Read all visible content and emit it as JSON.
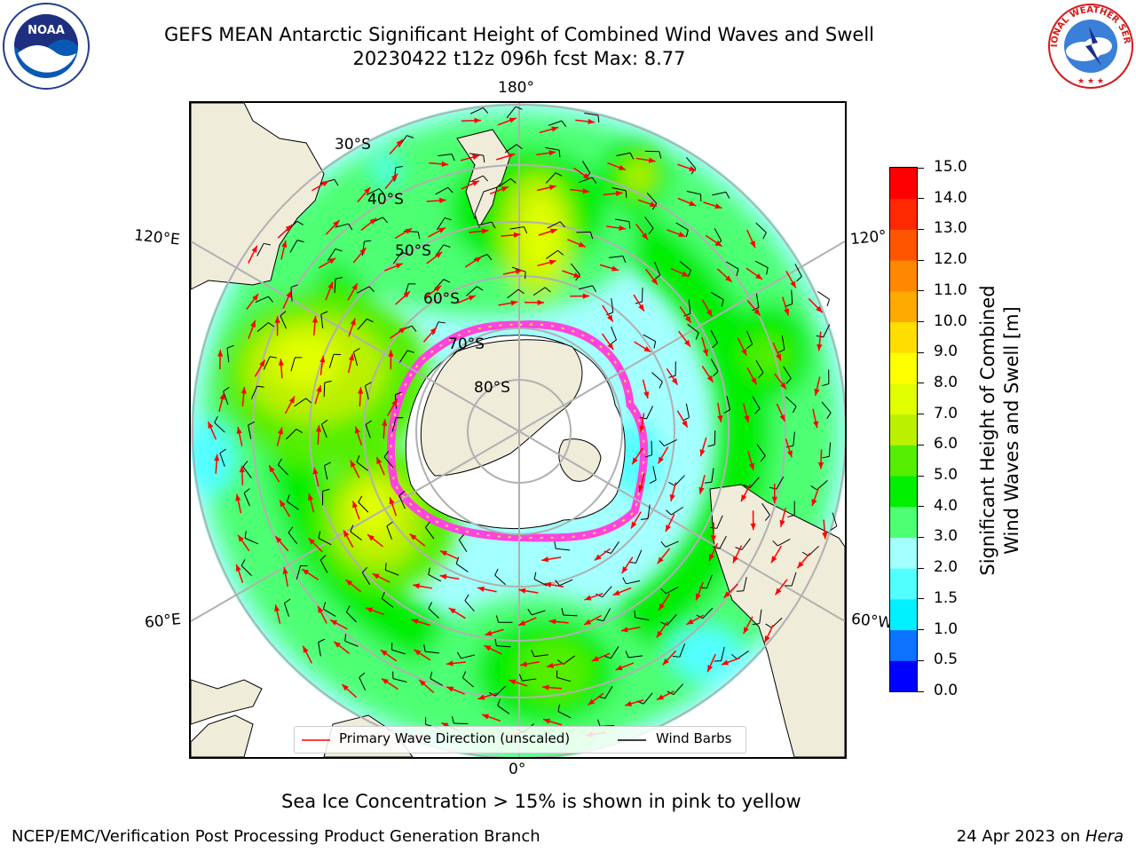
{
  "title": {
    "line1": "GEFS MEAN Antarctic Significant Height of Combined Wind Waves and Swell",
    "line2": "20230422 t12z 096h fcst   Max: 8.77"
  },
  "logos": {
    "left": "noaa-logo",
    "right": "nws-logo",
    "left_text": "NOAA",
    "right_text": "NATIONAL WEATHER SERVICE"
  },
  "map": {
    "projection": "south-polar-stereographic",
    "longitude_labels": {
      "top": "180°",
      "bottom": "0°",
      "left_upper": "120°E",
      "left_lower": "60°E",
      "right_upper": "120°",
      "right_lower": "60°W"
    },
    "latitude_labels": [
      "30°S",
      "40°S",
      "50°S",
      "60°S",
      "70°S",
      "80°S"
    ],
    "colors": {
      "land": "#efecda",
      "ice_shelf": "#ffffff",
      "sea_ice": "#ff44dd",
      "grid": "#b0b0b0",
      "wave_arrow": "#ff0000",
      "wind_barb": "#000000"
    }
  },
  "colorbar": {
    "ticks": [
      "0.0",
      "0.5",
      "1.0",
      "1.5",
      "2.0",
      "3.0",
      "4.0",
      "5.0",
      "6.0",
      "7.0",
      "8.0",
      "9.0",
      "10.0",
      "11.0",
      "12.0",
      "13.0",
      "14.0",
      "15.0"
    ],
    "colors": [
      "#0000ff",
      "#0b73ff",
      "#00f0ff",
      "#52ffff",
      "#a4ffff",
      "#4dff73",
      "#00ee00",
      "#55ee00",
      "#bbf000",
      "#e2ff00",
      "#ffff00",
      "#ffdd00",
      "#ffaa00",
      "#ff8800",
      "#ff5500",
      "#ff2800",
      "#ff0000"
    ],
    "label_line1": "Significant Height of Combined",
    "label_line2": "Wind Waves and Swell [m]"
  },
  "legend": {
    "items": [
      {
        "label": "Primary Wave Direction (unscaled)",
        "color": "#ff0000"
      },
      {
        "label": "Wind Barbs",
        "color": "#000000"
      }
    ]
  },
  "subtitle": "Sea Ice Concentration > 15% is shown in pink to yellow",
  "footer": {
    "left": "NCEP/EMC/Verification Post Processing Product Generation Branch",
    "right_date": "24 Apr 2023 on",
    "right_host": "Hera"
  }
}
